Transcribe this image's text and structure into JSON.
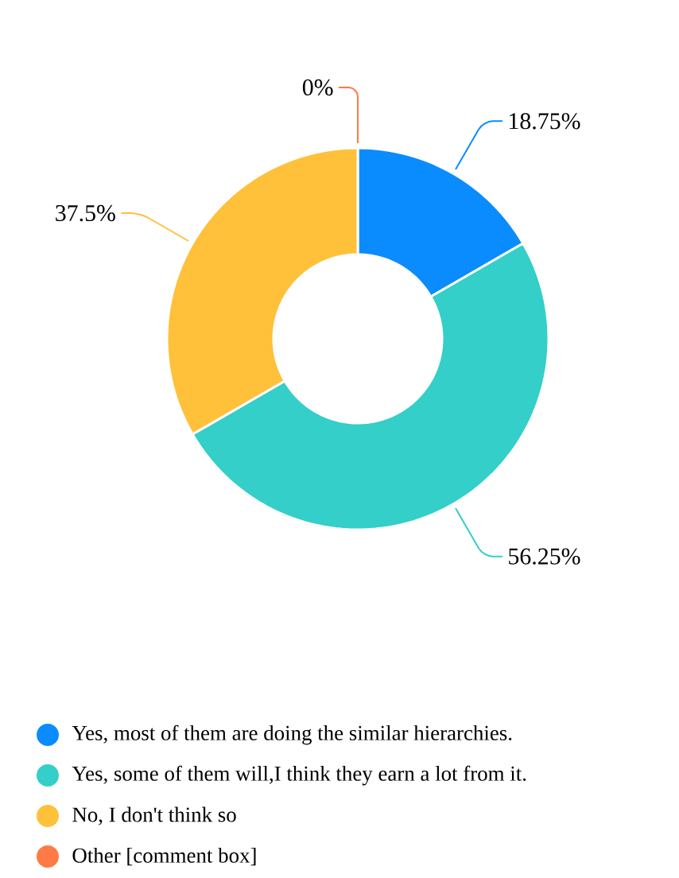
{
  "chart_data": {
    "type": "donut",
    "categories": [
      "Yes, most of them are doing the similar hierarchies.",
      "Yes, some of them will,I think they earn a lot from it.",
      "No, I don't think so",
      "Other [comment box]"
    ],
    "values": [
      18.75,
      56.25,
      37.5,
      0
    ],
    "colors": [
      "#0a8cff",
      "#33cfc8",
      "#ffc03a",
      "#ff7a45"
    ],
    "value_labels": [
      "18.75%",
      "56.25%",
      "37.5%",
      "0%"
    ],
    "legend": "bottom"
  }
}
